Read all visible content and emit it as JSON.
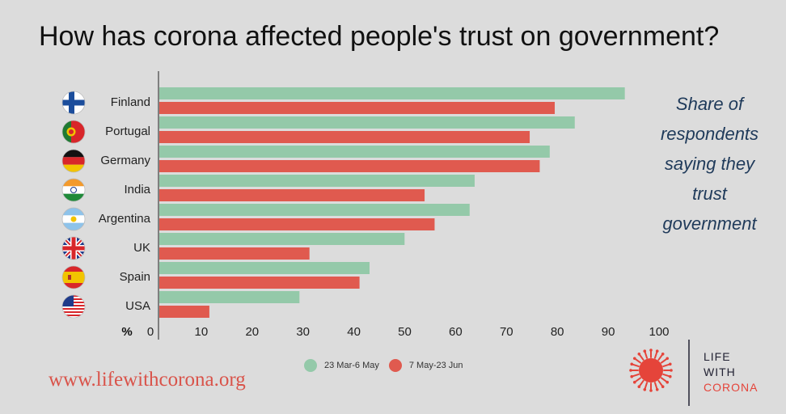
{
  "title": "How has corona affected people's trust on government?",
  "side_note": "Share of respondents saying they trust government",
  "website": "www.lifewithcorona.org",
  "logo": {
    "line1": "LIFE",
    "line2": "WITH",
    "line3": "CORONA"
  },
  "colors": {
    "series1": "#94c9a9",
    "series2": "#e05a4f",
    "background": "#dcdcdc",
    "note": "#1f3a5a"
  },
  "chart_data": {
    "type": "bar",
    "orientation": "horizontal",
    "categories": [
      "Finland",
      "Portugal",
      "Germany",
      "India",
      "Argentina",
      "UK",
      "Spain",
      "USA"
    ],
    "series": [
      {
        "name": "23 Mar-6 May",
        "values": [
          93,
          83,
          78,
          63,
          62,
          49,
          42,
          28
        ]
      },
      {
        "name": "7 May-23 Jun",
        "values": [
          79,
          74,
          76,
          53,
          55,
          30,
          40,
          10
        ]
      }
    ],
    "xlabel": "%",
    "xlim": [
      0,
      100
    ],
    "xticks": [
      0,
      10,
      20,
      30,
      40,
      50,
      60,
      70,
      80,
      90,
      100
    ],
    "legend_position": "bottom",
    "grid": false
  }
}
